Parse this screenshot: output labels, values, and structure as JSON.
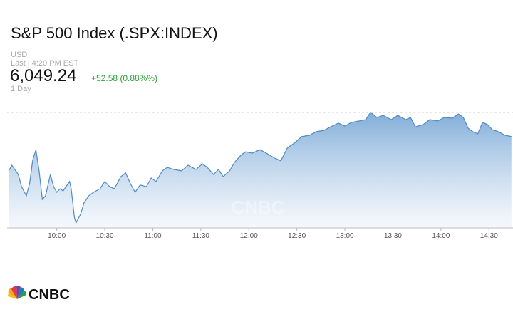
{
  "header": {
    "title": "S&P 500 Index (.SPX:INDEX)",
    "currency": "USD",
    "last": "Last | 4:20 PM EST",
    "price": "6,049.24",
    "change": "+52.58 (0.88%%)",
    "range": "1 Day"
  },
  "logo": "CNBC",
  "chart_data": {
    "type": "line",
    "x": [
      570,
      572,
      576,
      578,
      581,
      583,
      585,
      587,
      589,
      591,
      593,
      596,
      598,
      600,
      602,
      604,
      608,
      609,
      611,
      612,
      615,
      617,
      620,
      623,
      627,
      630,
      633,
      636,
      640,
      643,
      646,
      649,
      652,
      656,
      659,
      662,
      666,
      669,
      673,
      678,
      682,
      687,
      691,
      694,
      698,
      701,
      704,
      708,
      711,
      715,
      718,
      722,
      727,
      731,
      736,
      740,
      744,
      749,
      753,
      758,
      762,
      767,
      771,
      776,
      780,
      784,
      789,
      793,
      796,
      800,
      804,
      809,
      813,
      818,
      821,
      824,
      829,
      833,
      838,
      842,
      847,
      851,
      854,
      857,
      860,
      863,
      866,
      869,
      872,
      876,
      880,
      884
    ],
    "series": [
      {
        "color": "#4f8bc4",
        "values": [
          6034.5,
          6036.9,
          6032.9,
          6027.7,
          6023.8,
          6029.0,
          6039.1,
          6043.6,
          6034.5,
          6022.2,
          6023.8,
          6032.9,
          6027.7,
          6025.3,
          6026.8,
          6025.9,
          6029.9,
          6026.8,
          6014.6,
          6012.1,
          6016.1,
          6020.7,
          6023.8,
          6025.3,
          6026.8,
          6029.9,
          6027.7,
          6026.8,
          6032.0,
          6033.6,
          6029.0,
          6025.3,
          6028.4,
          6027.7,
          6031.4,
          6029.9,
          6034.5,
          6036.0,
          6035.1,
          6034.5,
          6036.9,
          6035.1,
          6037.5,
          6036.0,
          6032.9,
          6035.1,
          6032.0,
          6034.5,
          6038.1,
          6041.2,
          6042.7,
          6042.1,
          6043.6,
          6042.1,
          6040.0,
          6038.8,
          6044.3,
          6046.7,
          6049.2,
          6049.8,
          6051.3,
          6051.9,
          6053.4,
          6055.0,
          6053.7,
          6055.3,
          6055.9,
          6056.5,
          6059.6,
          6057.4,
          6058.3,
          6056.5,
          6058.3,
          6056.5,
          6057.4,
          6053.4,
          6054.4,
          6056.5,
          6055.9,
          6057.4,
          6057.1,
          6058.9,
          6057.4,
          6052.8,
          6051.3,
          6050.4,
          6055.3,
          6054.4,
          6052.2,
          6051.3,
          6049.8,
          6049.24
        ]
      }
    ],
    "xlim": [
      569,
      885
    ],
    "ylim": [
      6010,
      6062
    ],
    "xticks": [
      {
        "value": 600,
        "label": "10:00"
      },
      {
        "value": 630,
        "label": "10:30"
      },
      {
        "value": 660,
        "label": "11:00"
      },
      {
        "value": 690,
        "label": "11:30"
      },
      {
        "value": 720,
        "label": "12:00"
      },
      {
        "value": 750,
        "label": "12:30"
      },
      {
        "value": 780,
        "label": "13:00"
      },
      {
        "value": 810,
        "label": "13:30"
      },
      {
        "value": 840,
        "label": "14:00"
      },
      {
        "value": 870,
        "label": "14:30"
      }
    ]
  }
}
